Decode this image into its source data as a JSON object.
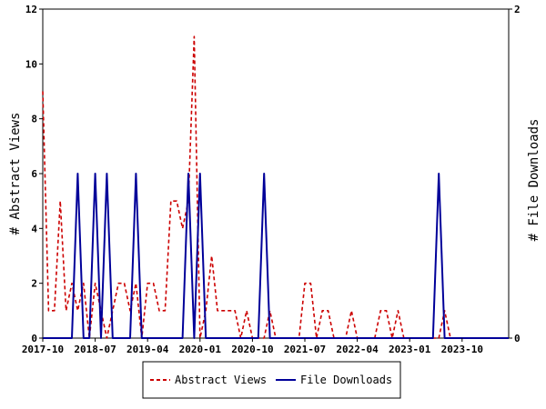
{
  "chart_data": {
    "type": "line",
    "grid": false,
    "legend_position": "bottom",
    "x_axis": {
      "ticks": [
        "2017-10",
        "2018-07",
        "2019-04",
        "2020-01",
        "2020-10",
        "2021-07",
        "2022-04",
        "2023-01",
        "2023-10"
      ]
    },
    "y_left": {
      "label": "# Abstract Views",
      "ylim": [
        0,
        12
      ],
      "ticks": [
        "0",
        "2",
        "4",
        "6",
        "8",
        "10",
        "12"
      ]
    },
    "y_right": {
      "label": "# File Downloads",
      "ylim": [
        0,
        2
      ],
      "ticks": [
        "0",
        "2"
      ]
    },
    "series": [
      {
        "name": "Abstract Views",
        "axis": "left",
        "color": "#cc0000",
        "style": "dashed",
        "x": [
          "2017-10",
          "2017-11",
          "2017-12",
          "2018-01",
          "2018-02",
          "2018-03",
          "2018-04",
          "2018-05",
          "2018-06",
          "2018-07",
          "2018-08",
          "2018-09",
          "2018-10",
          "2018-11",
          "2018-12",
          "2019-01",
          "2019-02",
          "2019-03",
          "2019-04",
          "2019-05",
          "2019-06",
          "2019-07",
          "2019-08",
          "2019-09",
          "2019-10",
          "2019-11",
          "2019-12",
          "2020-01",
          "2020-02",
          "2020-03",
          "2020-04",
          "2020-05",
          "2020-06",
          "2020-07",
          "2020-08",
          "2020-09",
          "2020-10",
          "2020-11",
          "2020-12",
          "2021-01",
          "2021-02",
          "2021-03",
          "2021-04",
          "2021-05",
          "2021-06",
          "2021-07",
          "2021-08",
          "2021-09",
          "2021-10",
          "2021-11",
          "2021-12",
          "2022-01",
          "2022-02",
          "2022-03",
          "2022-04",
          "2022-05",
          "2022-06",
          "2022-07",
          "2022-08",
          "2022-09",
          "2022-10",
          "2022-11",
          "2022-12",
          "2023-01",
          "2023-02",
          "2023-03",
          "2023-04",
          "2023-05",
          "2023-06",
          "2023-07",
          "2023-08",
          "2023-09",
          "2023-10",
          "2023-11",
          "2023-12",
          "2024-01",
          "2024-02",
          "2024-03",
          "2024-04",
          "2024-05",
          "2024-06"
        ],
        "values": [
          9,
          1,
          1,
          5,
          1,
          2,
          1,
          2,
          0,
          2,
          1,
          0,
          1,
          2,
          2,
          1,
          2,
          0,
          2,
          2,
          1,
          1,
          5,
          5,
          4,
          5,
          11,
          0,
          1,
          3,
          1,
          1,
          1,
          1,
          0,
          1,
          0,
          0,
          0,
          1,
          0,
          0,
          0,
          0,
          0,
          2,
          2,
          0,
          1,
          1,
          0,
          0,
          0,
          1,
          0,
          0,
          0,
          0,
          1,
          1,
          0,
          1,
          0,
          0,
          0,
          0,
          0,
          0,
          0,
          1,
          0,
          0,
          0,
          0,
          0,
          0,
          0,
          0,
          0,
          0,
          0
        ]
      },
      {
        "name": "File Downloads",
        "axis": "right",
        "color": "#000099",
        "style": "solid",
        "x": [
          "2017-10",
          "2017-11",
          "2017-12",
          "2018-01",
          "2018-02",
          "2018-03",
          "2018-04",
          "2018-05",
          "2018-06",
          "2018-07",
          "2018-08",
          "2018-09",
          "2018-10",
          "2018-11",
          "2018-12",
          "2019-01",
          "2019-02",
          "2019-03",
          "2019-04",
          "2019-05",
          "2019-06",
          "2019-07",
          "2019-08",
          "2019-09",
          "2019-10",
          "2019-11",
          "2019-12",
          "2020-01",
          "2020-02",
          "2020-03",
          "2020-04",
          "2020-05",
          "2020-06",
          "2020-07",
          "2020-08",
          "2020-09",
          "2020-10",
          "2020-11",
          "2020-12",
          "2021-01",
          "2021-02",
          "2021-03",
          "2021-04",
          "2021-05",
          "2021-06",
          "2021-07",
          "2021-08",
          "2021-09",
          "2021-10",
          "2021-11",
          "2021-12",
          "2022-01",
          "2022-02",
          "2022-03",
          "2022-04",
          "2022-05",
          "2022-06",
          "2022-07",
          "2022-08",
          "2022-09",
          "2022-10",
          "2022-11",
          "2022-12",
          "2023-01",
          "2023-02",
          "2023-03",
          "2023-04",
          "2023-05",
          "2023-06",
          "2023-07",
          "2023-08",
          "2023-09",
          "2023-10",
          "2023-11",
          "2023-12",
          "2024-01",
          "2024-02",
          "2024-03",
          "2024-04",
          "2024-05",
          "2024-06"
        ],
        "values": [
          0,
          0,
          0,
          0,
          0,
          0,
          1,
          0,
          0,
          1,
          0,
          1,
          0,
          0,
          0,
          0,
          1,
          0,
          0,
          0,
          0,
          0,
          0,
          0,
          0,
          1,
          0,
          1,
          0,
          0,
          0,
          0,
          0,
          0,
          0,
          0,
          0,
          0,
          1,
          0,
          0,
          0,
          0,
          0,
          0,
          0,
          0,
          0,
          0,
          0,
          0,
          0,
          0,
          0,
          0,
          0,
          0,
          0,
          0,
          0,
          0,
          0,
          0,
          0,
          0,
          0,
          0,
          0,
          1,
          0,
          0,
          0,
          0,
          0,
          0,
          0,
          0,
          0,
          0,
          0,
          0
        ]
      }
    ]
  }
}
